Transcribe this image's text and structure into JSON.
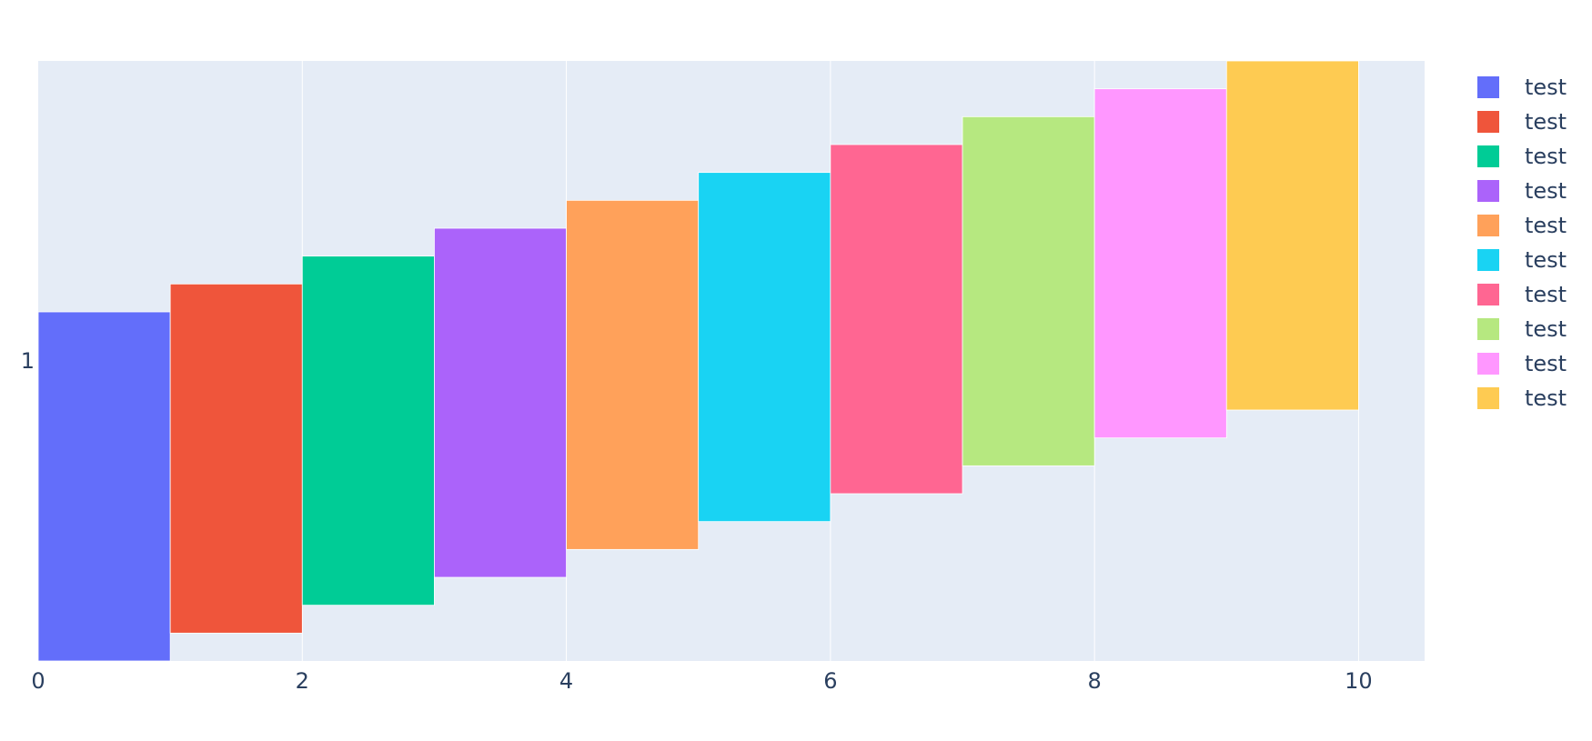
{
  "chart_data": {
    "type": "bar",
    "orientation": "horizontal",
    "barmode": "overlay",
    "y_category": "1",
    "xlim": [
      0,
      10.5
    ],
    "x_ticks": [
      0,
      2,
      4,
      6,
      8,
      10
    ],
    "y_ticks": [
      "1"
    ],
    "grid": true,
    "legend_position": "right",
    "title": "",
    "xlabel": "",
    "ylabel": "",
    "series": [
      {
        "name": "test",
        "start": 0,
        "end": 1,
        "offset_index": 0,
        "color": "#636efa"
      },
      {
        "name": "test",
        "start": 1,
        "end": 2,
        "offset_index": 1,
        "color": "#EF553B"
      },
      {
        "name": "test",
        "start": 2,
        "end": 3,
        "offset_index": 2,
        "color": "#00cc96"
      },
      {
        "name": "test",
        "start": 3,
        "end": 4,
        "offset_index": 3,
        "color": "#ab63fa"
      },
      {
        "name": "test",
        "start": 4,
        "end": 5,
        "offset_index": 4,
        "color": "#FFA15A"
      },
      {
        "name": "test",
        "start": 5,
        "end": 6,
        "offset_index": 5,
        "color": "#19d3f3"
      },
      {
        "name": "test",
        "start": 6,
        "end": 7,
        "offset_index": 6,
        "color": "#FF6692"
      },
      {
        "name": "test",
        "start": 7,
        "end": 8,
        "offset_index": 7,
        "color": "#B6E880"
      },
      {
        "name": "test",
        "start": 8,
        "end": 9,
        "offset_index": 8,
        "color": "#FF97FF"
      },
      {
        "name": "test",
        "start": 9,
        "end": 10,
        "offset_index": 9,
        "color": "#FECB52"
      }
    ]
  },
  "colors": {
    "plot_background": "#e5ecf6",
    "gridline": "#ffffff",
    "text": "#2a3f5f"
  }
}
